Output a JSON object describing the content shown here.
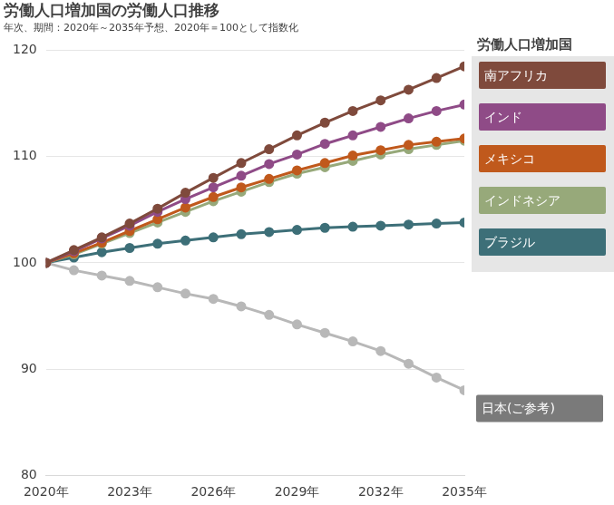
{
  "chart_data": {
    "type": "line",
    "title": "労働人口増加国の労働人口推移",
    "subtitle": "年次、期間：2020年～2035年予想、2020年＝100として指数化",
    "legend_title": "労働人口増加国",
    "legend": "right",
    "grid": true,
    "marker": "circle",
    "x": [
      2020,
      2021,
      2022,
      2023,
      2024,
      2025,
      2026,
      2027,
      2028,
      2029,
      2030,
      2031,
      2032,
      2033,
      2034,
      2035
    ],
    "xlim": [
      2020,
      2035
    ],
    "xticks": [
      {
        "value": 2020,
        "label": "2020年"
      },
      {
        "value": 2023,
        "label": "2023年"
      },
      {
        "value": 2026,
        "label": "2026年"
      },
      {
        "value": 2029,
        "label": "2029年"
      },
      {
        "value": 2032,
        "label": "2032年"
      },
      {
        "value": 2035,
        "label": "2035年"
      }
    ],
    "ylim": [
      80,
      120
    ],
    "yticks": [
      80,
      90,
      100,
      110,
      120
    ],
    "series": [
      {
        "name": "南アフリカ",
        "color": "#7f4a3c",
        "values": [
          100,
          101.2,
          102.4,
          103.7,
          105.1,
          106.6,
          108.0,
          109.4,
          110.7,
          112.0,
          113.2,
          114.3,
          115.3,
          116.3,
          117.4,
          118.5
        ]
      },
      {
        "name": "インド",
        "color": "#8f4b87",
        "values": [
          100,
          101.1,
          102.3,
          103.5,
          104.8,
          106.0,
          107.1,
          108.2,
          109.3,
          110.2,
          111.2,
          112.0,
          112.8,
          113.6,
          114.3,
          114.9
        ]
      },
      {
        "name": "メキシコ",
        "color": "#c0591c",
        "values": [
          100,
          100.9,
          101.9,
          103.0,
          104.1,
          105.2,
          106.2,
          107.1,
          107.9,
          108.7,
          109.4,
          110.1,
          110.6,
          111.1,
          111.4,
          111.7
        ]
      },
      {
        "name": "インドネシア",
        "color": "#97a97a",
        "values": [
          100,
          100.8,
          101.8,
          102.8,
          103.8,
          104.8,
          105.8,
          106.7,
          107.6,
          108.4,
          109.0,
          109.6,
          110.2,
          110.7,
          111.1,
          111.5
        ]
      },
      {
        "name": "ブラジル",
        "color": "#3d6f78",
        "values": [
          100,
          100.5,
          101.0,
          101.4,
          101.8,
          102.1,
          102.4,
          102.7,
          102.9,
          103.1,
          103.3,
          103.4,
          103.5,
          103.6,
          103.7,
          103.8
        ]
      },
      {
        "name": "日本(ご参考)",
        "color": "#b8b8b8",
        "values": [
          100,
          99.3,
          98.8,
          98.3,
          97.7,
          97.1,
          96.6,
          95.9,
          95.1,
          94.2,
          93.4,
          92.6,
          91.7,
          90.5,
          89.2,
          88.0
        ]
      }
    ],
    "annotations": [
      {
        "text": "日本(ご参考)",
        "color": "#7a7a7a"
      }
    ]
  }
}
